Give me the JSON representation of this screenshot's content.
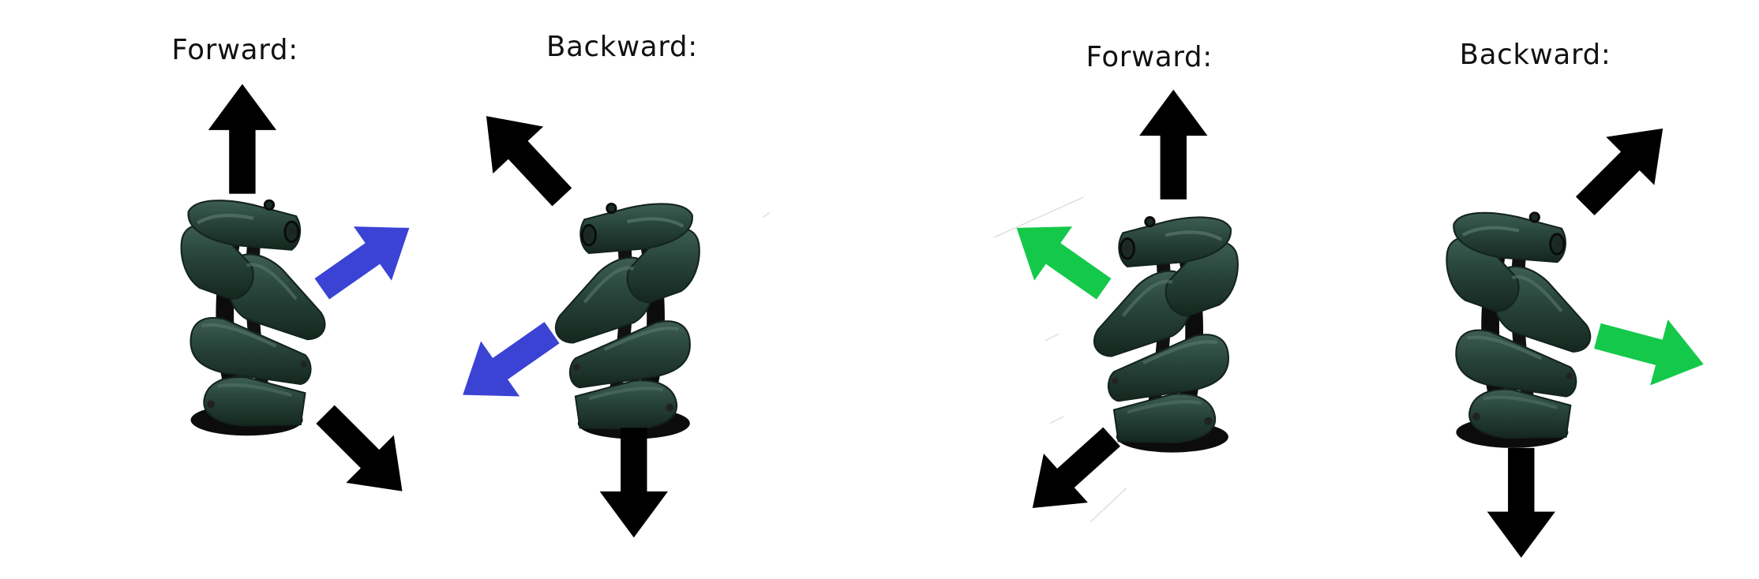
{
  "panels": [
    {
      "forward_label": "Forward:",
      "backward_label": "Backward:",
      "side_arrow_color": "#3a43d4"
    },
    {
      "forward_label": "Forward:",
      "backward_label": "Backward:",
      "side_arrow_color": "#14c94a"
    }
  ],
  "colors": {
    "main_arrow": "#000000",
    "wheel_roller": "#27433a",
    "wheel_roller_dark": "#14241e",
    "wheel_hub": "#0c0c0c"
  },
  "icons": [
    "mecanum-wheel-icon",
    "arrow-icon"
  ]
}
